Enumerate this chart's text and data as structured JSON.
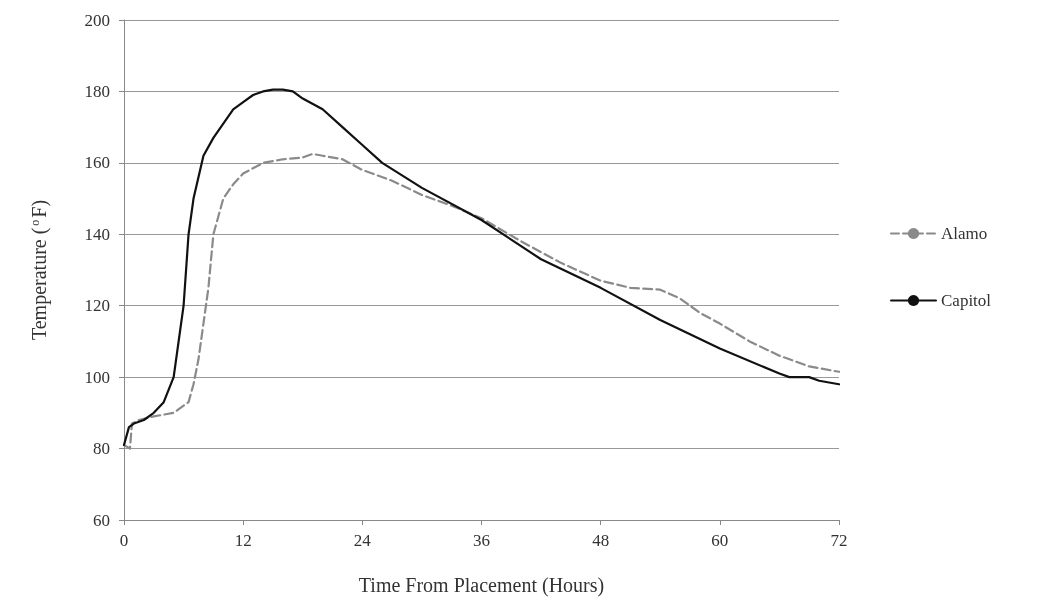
{
  "chart_data": {
    "type": "line",
    "xlabel": "Time From Placement (Hours)",
    "ylabel": "Temperature ($^{o}$F)",
    "xlim": [
      0,
      72
    ],
    "xticks": [
      0,
      12,
      24,
      36,
      48,
      60,
      72
    ],
    "ylim": [
      60,
      200
    ],
    "yticks": [
      60,
      80,
      100,
      120,
      140,
      160,
      180,
      200
    ],
    "grid": "y",
    "legend": "right",
    "marker": "none",
    "series": [
      {
        "name": "Alamo",
        "color": "#8a8a8a",
        "line_style": "dashed",
        "x": [
          0,
          0.6,
          0.8,
          1.5,
          3,
          5,
          6.5,
          7,
          7.5,
          8,
          8.5,
          9,
          10,
          11,
          12,
          14,
          16,
          18,
          19,
          20,
          22,
          24,
          27,
          30,
          33,
          36,
          40,
          44,
          48,
          51,
          54,
          56,
          58,
          60,
          63,
          66,
          69,
          72
        ],
        "values": [
          81,
          80,
          87,
          88,
          89,
          90,
          93,
          98,
          105,
          115,
          125,
          140,
          150,
          154,
          157,
          160,
          161,
          161.5,
          162.5,
          162,
          161,
          158,
          155,
          151,
          148,
          144.5,
          138,
          132,
          127,
          125,
          124.5,
          122,
          118,
          115,
          110,
          106,
          103,
          101.5
        ]
      },
      {
        "name": "Capitol",
        "color": "#111111",
        "line_style": "solid",
        "x": [
          0,
          0.5,
          1,
          2,
          3,
          4,
          5,
          5.5,
          6,
          6.5,
          7,
          8,
          9,
          10,
          11,
          12,
          13,
          14,
          15,
          16,
          17,
          18,
          20,
          22,
          24,
          26,
          30,
          36,
          42,
          48,
          54,
          60,
          66,
          67,
          69,
          70,
          71,
          72
        ],
        "values": [
          81,
          86,
          87,
          88,
          90,
          93,
          100,
          110,
          120,
          140,
          150,
          162,
          167,
          171,
          175,
          177,
          179,
          180,
          180.5,
          180.5,
          180,
          178,
          175,
          170,
          165,
          160,
          153,
          144,
          133,
          125,
          116,
          108,
          101,
          100,
          100,
          99,
          98.5,
          98
        ]
      }
    ]
  }
}
